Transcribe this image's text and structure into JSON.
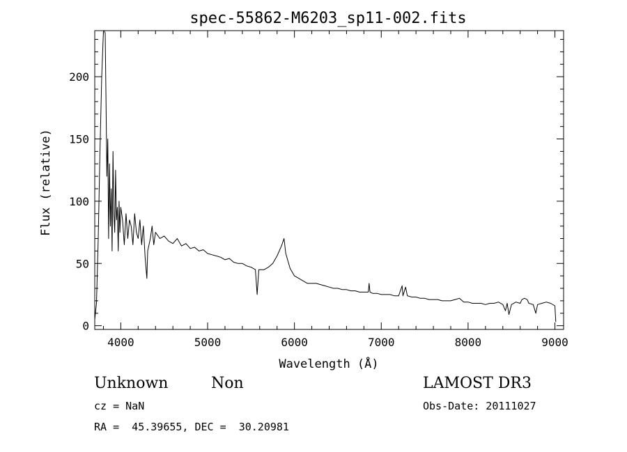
{
  "chart_data": {
    "type": "line",
    "title": "spec-55862-M6203_sp11-002.fits",
    "xlabel": "Wavelength (Å)",
    "ylabel": "Flux (relative)",
    "xlim": [
      3700,
      9100
    ],
    "ylim": [
      -3,
      237
    ],
    "x_ticks": [
      4000,
      5000,
      6000,
      7000,
      8000,
      9000
    ],
    "y_ticks": [
      0,
      50,
      100,
      150,
      200
    ],
    "grid": false,
    "series": [
      {
        "name": "flux",
        "points": [
          [
            3700,
            5
          ],
          [
            3720,
            18
          ],
          [
            3740,
            70
          ],
          [
            3760,
            140
          ],
          [
            3780,
            200
          ],
          [
            3800,
            237
          ],
          [
            3810,
            237
          ],
          [
            3820,
            235
          ],
          [
            3830,
            180
          ],
          [
            3840,
            120
          ],
          [
            3850,
            150
          ],
          [
            3860,
            70
          ],
          [
            3870,
            130
          ],
          [
            3880,
            80
          ],
          [
            3890,
            110
          ],
          [
            3900,
            60
          ],
          [
            3910,
            140
          ],
          [
            3920,
            90
          ],
          [
            3930,
            75
          ],
          [
            3940,
            125
          ],
          [
            3950,
            85
          ],
          [
            3960,
            95
          ],
          [
            3970,
            60
          ],
          [
            3980,
            100
          ],
          [
            3990,
            75
          ],
          [
            4000,
            95
          ],
          [
            4020,
            85
          ],
          [
            4040,
            65
          ],
          [
            4060,
            90
          ],
          [
            4080,
            70
          ],
          [
            4100,
            85
          ],
          [
            4120,
            80
          ],
          [
            4140,
            65
          ],
          [
            4160,
            90
          ],
          [
            4180,
            75
          ],
          [
            4200,
            70
          ],
          [
            4220,
            85
          ],
          [
            4240,
            65
          ],
          [
            4260,
            80
          ],
          [
            4280,
            55
          ],
          [
            4300,
            38
          ],
          [
            4310,
            60
          ],
          [
            4340,
            70
          ],
          [
            4360,
            80
          ],
          [
            4380,
            65
          ],
          [
            4400,
            75
          ],
          [
            4450,
            70
          ],
          [
            4500,
            72
          ],
          [
            4550,
            68
          ],
          [
            4600,
            66
          ],
          [
            4650,
            70
          ],
          [
            4700,
            64
          ],
          [
            4750,
            66
          ],
          [
            4800,
            62
          ],
          [
            4850,
            63
          ],
          [
            4900,
            60
          ],
          [
            4950,
            61
          ],
          [
            5000,
            58
          ],
          [
            5050,
            57
          ],
          [
            5100,
            56
          ],
          [
            5150,
            55
          ],
          [
            5200,
            53
          ],
          [
            5250,
            54
          ],
          [
            5300,
            51
          ],
          [
            5350,
            50
          ],
          [
            5400,
            50
          ],
          [
            5450,
            48
          ],
          [
            5500,
            47
          ],
          [
            5550,
            45
          ],
          [
            5570,
            25
          ],
          [
            5590,
            45
          ],
          [
            5650,
            45
          ],
          [
            5700,
            47
          ],
          [
            5750,
            50
          ],
          [
            5800,
            56
          ],
          [
            5850,
            64
          ],
          [
            5880,
            70
          ],
          [
            5900,
            58
          ],
          [
            5950,
            46
          ],
          [
            6000,
            40
          ],
          [
            6050,
            38
          ],
          [
            6100,
            36
          ],
          [
            6150,
            34
          ],
          [
            6200,
            34
          ],
          [
            6250,
            34
          ],
          [
            6300,
            33
          ],
          [
            6350,
            32
          ],
          [
            6400,
            31
          ],
          [
            6450,
            30
          ],
          [
            6500,
            30
          ],
          [
            6550,
            29
          ],
          [
            6600,
            29
          ],
          [
            6650,
            28
          ],
          [
            6700,
            28
          ],
          [
            6750,
            27
          ],
          [
            6800,
            27
          ],
          [
            6850,
            27
          ],
          [
            6860,
            34
          ],
          [
            6870,
            27
          ],
          [
            6900,
            26
          ],
          [
            6950,
            26
          ],
          [
            7000,
            25
          ],
          [
            7050,
            25
          ],
          [
            7100,
            25
          ],
          [
            7150,
            24
          ],
          [
            7200,
            24
          ],
          [
            7240,
            32
          ],
          [
            7250,
            24
          ],
          [
            7280,
            31
          ],
          [
            7300,
            24
          ],
          [
            7350,
            23
          ],
          [
            7400,
            23
          ],
          [
            7450,
            22
          ],
          [
            7500,
            22
          ],
          [
            7550,
            21
          ],
          [
            7600,
            21
          ],
          [
            7650,
            21
          ],
          [
            7700,
            20
          ],
          [
            7750,
            20
          ],
          [
            7800,
            20
          ],
          [
            7850,
            21
          ],
          [
            7900,
            22
          ],
          [
            7950,
            19
          ],
          [
            8000,
            19
          ],
          [
            8050,
            18
          ],
          [
            8100,
            18
          ],
          [
            8150,
            18
          ],
          [
            8200,
            17
          ],
          [
            8250,
            18
          ],
          [
            8300,
            18
          ],
          [
            8350,
            19
          ],
          [
            8400,
            17
          ],
          [
            8430,
            12
          ],
          [
            8450,
            18
          ],
          [
            8470,
            9
          ],
          [
            8500,
            17
          ],
          [
            8550,
            19
          ],
          [
            8600,
            18
          ],
          [
            8620,
            21
          ],
          [
            8650,
            22
          ],
          [
            8680,
            21
          ],
          [
            8700,
            18
          ],
          [
            8750,
            17
          ],
          [
            8780,
            10
          ],
          [
            8800,
            17
          ],
          [
            8850,
            18
          ],
          [
            8900,
            19
          ],
          [
            8950,
            18
          ],
          [
            9000,
            16
          ],
          [
            9010,
            3
          ]
        ]
      }
    ]
  },
  "info": {
    "class": "Unknown",
    "subclass": "Non",
    "survey": "LAMOST DR3",
    "cz": "cz = NaN",
    "obs_date": "Obs-Date: 20111027",
    "coords": "RA =  45.39655, DEC =  30.20981"
  }
}
